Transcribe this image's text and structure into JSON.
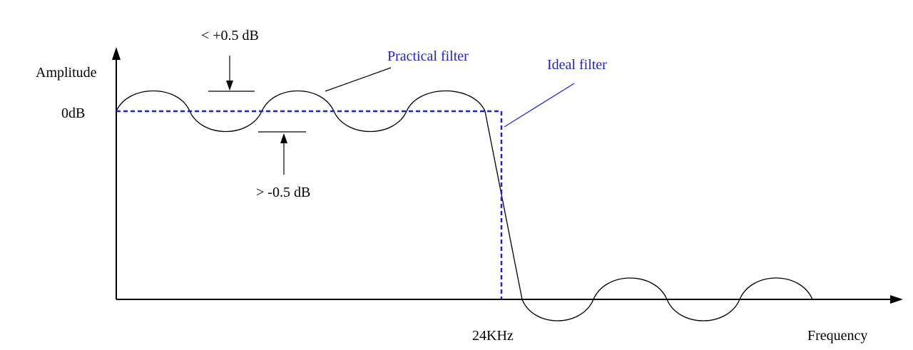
{
  "diagram": {
    "y_axis_label": "Amplitude",
    "x_axis_label": "Frequency",
    "zero_db_label": "0dB",
    "cutoff_label": "24KHz",
    "upper_ripple_label": "< +0.5 dB",
    "lower_ripple_label": "> -0.5 dB",
    "practical_filter_label": "Practical filter",
    "ideal_filter_label": "Ideal filter"
  },
  "colors": {
    "curve": "#000000",
    "ideal_filter": "#1f1fd6",
    "axis": "#000000"
  }
}
